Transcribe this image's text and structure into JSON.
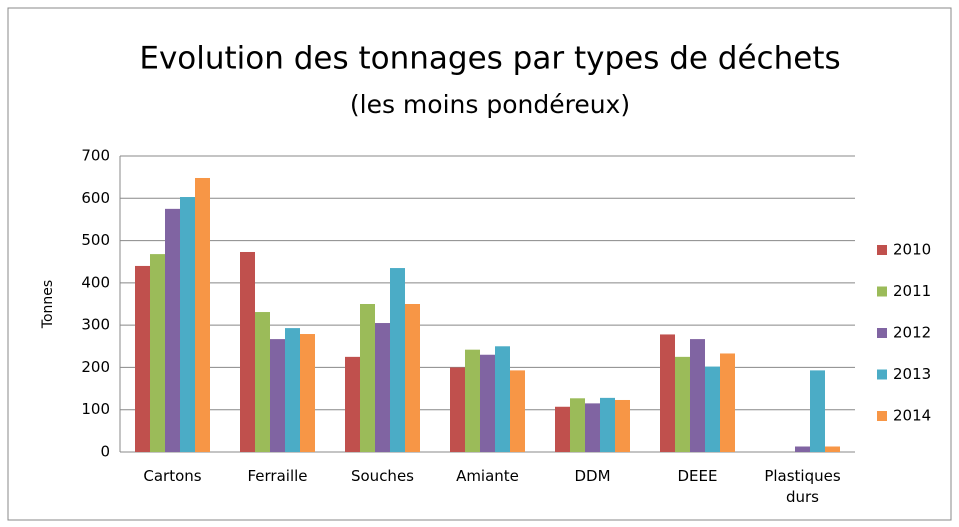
{
  "chart_data": {
    "type": "bar",
    "title": "Evolution des tonnages par types de déchets",
    "subtitle": "(les moins pondéreux)",
    "y_label": "Tonnes",
    "categories": [
      "Cartons",
      "Ferraille",
      "Souches",
      "Amiante",
      "DDM",
      "DEEE",
      "Plastiques durs"
    ],
    "series": [
      {
        "name": "2010",
        "color": "#c0504d",
        "values": [
          440,
          473,
          225,
          200,
          107,
          278,
          0
        ]
      },
      {
        "name": "2011",
        "color": "#9bbb59",
        "values": [
          468,
          331,
          350,
          242,
          127,
          225,
          0
        ]
      },
      {
        "name": "2012",
        "color": "#8064a2",
        "values": [
          575,
          267,
          305,
          230,
          115,
          267,
          13
        ]
      },
      {
        "name": "2013",
        "color": "#4bacc6",
        "values": [
          603,
          293,
          435,
          250,
          128,
          202,
          193
        ]
      },
      {
        "name": "2014",
        "color": "#f79646",
        "values": [
          648,
          279,
          350,
          193,
          123,
          233,
          13
        ]
      }
    ],
    "ylim": [
      0,
      700
    ],
    "yticks": [
      0,
      100,
      200,
      300,
      400,
      500,
      600,
      700
    ],
    "grid": true,
    "legend": "right"
  }
}
